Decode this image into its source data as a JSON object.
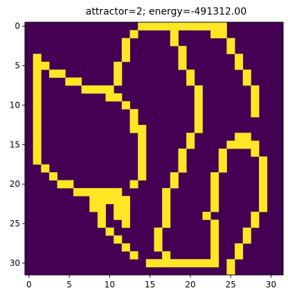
{
  "chart_data": {
    "type": "heatmap",
    "title": "attractor=2; energy=-491312.00",
    "xlabel": "",
    "ylabel": "",
    "grid": false,
    "colormap": {
      "low": "#440154",
      "high": "#fde725"
    },
    "xlim": [
      -0.5,
      31.5
    ],
    "ylim": [
      31.5,
      -0.5
    ],
    "x_ticks": [
      0,
      5,
      10,
      15,
      20,
      25,
      30
    ],
    "y_ticks": [
      0,
      5,
      10,
      15,
      20,
      25,
      30
    ],
    "rows": [
      "00000000000000111111111110000000",
      "00000000000001000010000110000000",
      "00000000000010000010000001000000",
      "00000000000010000001000001000000",
      "01000000000010000001000000100000",
      "01100000000100000001000000100000",
      "01011000000100000000100000010000",
      "01000110000100000000100000010000",
      "01000001111000000000010000001000",
      "01000000001100000000010000001000",
      "01000000000010000000010000001000",
      "01000000000001000000010000001000",
      "01000000000001000000010000000000",
      "01000000000001100000010000000000",
      "01000000000000100000100000110000",
      "01000000000000100000100001111000",
      "01000000000000100001000010001000",
      "01000000000000100001000010000100",
      "00100000000000100001000010000100",
      "00010000000000100010000100000100",
      "00001100000001000010000100000100",
      "00000011111100000100000100000100",
      "00000000111110000100000100000100",
      "00000000110110000100000100000100",
      "00000000010110000100001000001000",
      "00000000010010000100000100001000",
      "00000000001000001000000100010000",
      "00000000000100001000000100010000",
      "00000000000010001000000100100000",
      "00000000000001000100000100100000",
      "00000000000000011111111101000000",
      "00000000000000000000000001000000"
    ]
  }
}
